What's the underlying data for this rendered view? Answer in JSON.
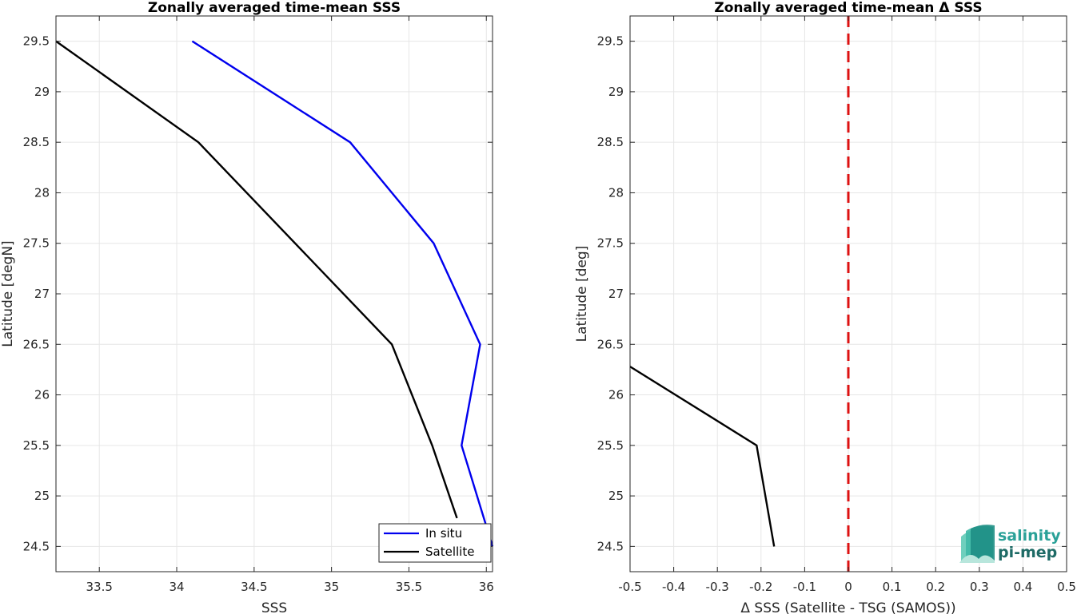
{
  "chart_data": [
    {
      "type": "line",
      "title": "Zonally averaged time-mean SSS",
      "xlabel": "SSS",
      "ylabel": "Latitude [degN]",
      "xlim": [
        33.22,
        36.04
      ],
      "ylim": [
        24.25,
        29.75
      ],
      "xticks": [
        "33.5",
        "34",
        "34.5",
        "35",
        "35.5",
        "36"
      ],
      "xtick_values": [
        33.5,
        34,
        34.5,
        35,
        35.5,
        36
      ],
      "yticks": [
        "24.5",
        "25",
        "25.5",
        "26",
        "26.5",
        "27",
        "27.5",
        "28",
        "28.5",
        "29",
        "29.5"
      ],
      "ytick_values": [
        24.5,
        25,
        25.5,
        26,
        26.5,
        27,
        27.5,
        28,
        28.5,
        29,
        29.5
      ],
      "grid": true,
      "legend": "bottom-right",
      "series": [
        {
          "name": "In situ",
          "color": "#0000ee",
          "x": [
            36.04,
            35.84,
            35.96,
            35.66,
            35.12,
            34.1
          ],
          "y": [
            24.5,
            25.5,
            26.5,
            27.5,
            28.5,
            29.5
          ]
        },
        {
          "name": "Satellite",
          "color": "#000000",
          "x": [
            35.81,
            35.65,
            35.39,
            34.14,
            33.22
          ],
          "y": [
            24.78,
            25.5,
            26.5,
            28.5,
            29.5
          ]
        }
      ]
    },
    {
      "type": "line",
      "title": "Zonally averaged time-mean Δ SSS",
      "xlabel": "Δ SSS (Satellite - TSG (SAMOS))",
      "ylabel": "Latitude [deg]",
      "xlim": [
        -0.5,
        0.5
      ],
      "ylim": [
        24.25,
        29.75
      ],
      "xticks": [
        "-0.5",
        "-0.4",
        "-0.3",
        "-0.2",
        "-0.1",
        "0",
        "0.1",
        "0.2",
        "0.3",
        "0.4",
        "0.5"
      ],
      "xtick_values": [
        -0.5,
        -0.4,
        -0.3,
        -0.2,
        -0.1,
        0,
        0.1,
        0.2,
        0.3,
        0.4,
        0.5
      ],
      "yticks": [
        "24.5",
        "25",
        "25.5",
        "26",
        "26.5",
        "27",
        "27.5",
        "28",
        "28.5",
        "29",
        "29.5"
      ],
      "ytick_values": [
        24.5,
        25,
        25.5,
        26,
        26.5,
        27,
        27.5,
        28,
        28.5,
        29,
        29.5
      ],
      "grid": true,
      "reference_line": {
        "x": 0,
        "color": "#dd1111",
        "style": "dashed"
      },
      "series": [
        {
          "color": "#000000",
          "x": [
            -0.17,
            -0.21,
            -0.5
          ],
          "y": [
            24.5,
            25.5,
            26.28
          ]
        }
      ]
    }
  ],
  "logo": {
    "line1": "salinity",
    "line2": "pi-mep"
  }
}
